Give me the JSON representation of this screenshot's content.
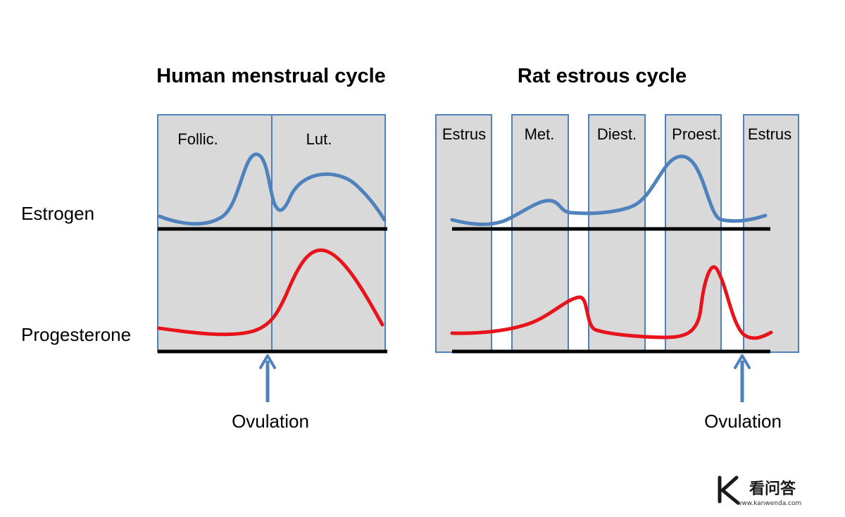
{
  "titles": {
    "human": "Human menstrual cycle",
    "rat": "Rat estrous cycle"
  },
  "row_labels": {
    "estrogen": "Estrogen",
    "progesterone": "Progesterone"
  },
  "human_phases": [
    "Follic.",
    "Lut."
  ],
  "rat_phases": [
    "Estrus",
    "Met.",
    "Diest.",
    "Proest.",
    "Estrus"
  ],
  "ovulation_label": "Ovulation",
  "watermark": {
    "text": "看问答",
    "url": "www.kanwenda.com"
  },
  "colors": {
    "panel_fill": "#d9d9d9",
    "panel_border": "#4f81bd",
    "estrogen": "#4f81bd",
    "progesterone": "#e8141b",
    "axis": "#000000",
    "arrow": "#4f81bd"
  }
}
